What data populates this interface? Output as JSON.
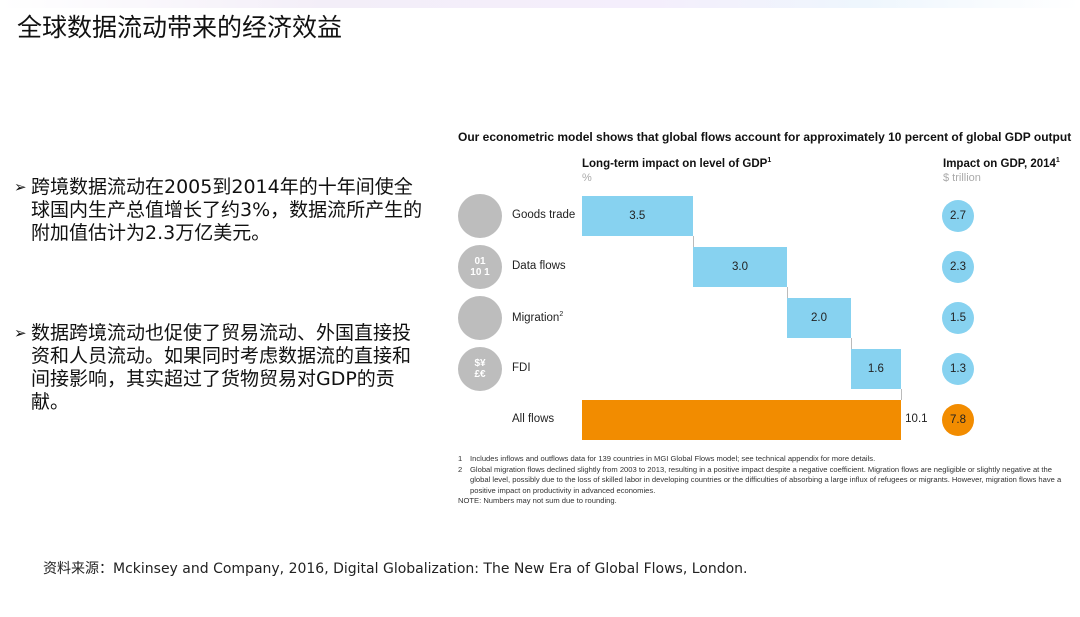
{
  "slide": {
    "title": "全球数据流动带来的经济效益",
    "bullets": [
      {
        "marker": "➢",
        "text": "跨境数据流动在2005到2014年的十年间使全球国内生产总值增长了约3%，数据流所产生的附加值估计为2.3万亿美元。"
      },
      {
        "marker": "➢",
        "text": "数据跨境流动也促使了贸易流动、外国直接投资和人员流动。如果同时考虑数据流的直接和间接影响，其实超过了货物贸易对GDP的贡献。"
      }
    ],
    "source": "资料来源：Mckinsey and Company, 2016, Digital Globalization: The New Era of Global Flows, London."
  },
  "chart_data": {
    "type": "bar",
    "subtype": "waterfall",
    "title": "Our econometric model shows that global flows account for approximately 10 percent of global GDP output",
    "left_header": "Long-term impact on level of GDP",
    "left_header_sup": "1",
    "left_unit": "%",
    "right_header": "Impact on GDP, 2014",
    "right_header_sup": "1",
    "right_unit": "$ trillion",
    "categories": [
      "Goods trade",
      "Data flows",
      "Migration",
      "FDI",
      "All flows"
    ],
    "category_sups": [
      "",
      "",
      "2",
      "",
      ""
    ],
    "icons": [
      "box-icon",
      "binary-data-icon",
      "people-icon",
      "currency-icon",
      ""
    ],
    "icon_text": [
      "",
      "01\n10 1",
      "",
      "$¥\n£€",
      ""
    ],
    "gdp_pct": [
      3.5,
      3.0,
      2.0,
      1.6,
      10.1
    ],
    "gdp_pct_labels": [
      "3.5",
      "3.0",
      "2.0",
      "1.6",
      "10.1"
    ],
    "gdp_trillion": [
      "2.7",
      "2.3",
      "1.5",
      "1.3",
      "7.8"
    ],
    "colors": {
      "component": "#87d2f0",
      "total": "#f28c00",
      "icon": "#bdbdbd"
    },
    "notes": [
      {
        "num": "1",
        "text": "Includes inflows and outflows data for 139 countries in MGI Global Flows model; see technical appendix for more details."
      },
      {
        "num": "2",
        "text": "Global migration flows declined slightly from 2003 to 2013, resulting in a positive impact despite a negative coefficient. Migration flows are negligible or slightly negative at the global level, possibly due to the loss of skilled labor in developing countries or the difficulties of absorbing a large influx of refugees or migrants. However, migration flows have a positive impact on productivity in advanced economies."
      }
    ],
    "note": "NOTE: Numbers may not sum due to rounding."
  }
}
